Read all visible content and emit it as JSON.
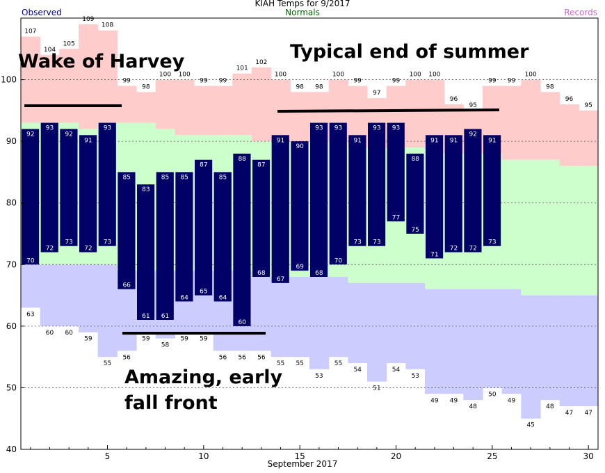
{
  "chart_data": {
    "type": "bar",
    "title": "KIAH Temps for 9/2017",
    "xlabel": "September 2017",
    "ylabel": "",
    "ylim": [
      40,
      110
    ],
    "yticks": [
      40,
      50,
      60,
      70,
      80,
      90,
      100
    ],
    "xticks": [
      5,
      10,
      15,
      20,
      25,
      30
    ],
    "xlim": [
      0.5,
      30.5
    ],
    "grid": "horizontal dashed",
    "legend": {
      "observed": "Observed",
      "normals": "Normals",
      "records": "Records"
    },
    "colors": {
      "observed": "#000066",
      "observed_label": "#000099",
      "normals_band": "#ccffcc",
      "normals_label": "#006600",
      "record_high_band": "#ffcccc",
      "record_low_band": "#ccccff",
      "records_label": "#cc66cc"
    },
    "days": [
      1,
      2,
      3,
      4,
      5,
      6,
      7,
      8,
      9,
      10,
      11,
      12,
      13,
      14,
      15,
      16,
      17,
      18,
      19,
      20,
      21,
      22,
      23,
      24,
      25,
      26,
      27,
      28,
      29,
      30
    ],
    "record_high": [
      107,
      104,
      105,
      109,
      108,
      99,
      98,
      100,
      100,
      99,
      99,
      101,
      102,
      100,
      98,
      98,
      100,
      99,
      97,
      99,
      100,
      100,
      96,
      95,
      99,
      99,
      100,
      98,
      96,
      95
    ],
    "record_low": [
      63,
      60,
      60,
      59,
      55,
      56,
      59,
      58,
      59,
      59,
      56,
      56,
      56,
      55,
      55,
      53,
      55,
      54,
      51,
      54,
      53,
      49,
      49,
      48,
      50,
      49,
      45,
      48,
      47,
      47
    ],
    "normal_high": [
      93,
      93,
      93,
      92,
      93,
      93,
      93,
      92,
      91,
      91,
      91,
      91,
      90,
      90,
      90,
      90,
      90,
      89,
      89,
      89,
      89,
      88,
      88,
      88,
      88,
      87,
      87,
      87,
      86,
      86
    ],
    "normal_low": [
      70,
      70,
      70,
      70,
      70,
      69,
      69,
      69,
      69,
      69,
      69,
      69,
      68,
      68,
      68,
      68,
      68,
      67,
      67,
      67,
      67,
      66,
      66,
      66,
      66,
      66,
      65,
      65,
      65,
      65
    ],
    "observed_high": [
      92,
      93,
      92,
      91,
      93,
      85,
      83,
      85,
      85,
      87,
      85,
      88,
      87,
      91,
      90,
      93,
      93,
      91,
      93,
      93,
      88,
      91,
      91,
      92,
      91
    ],
    "observed_low": [
      70,
      72,
      73,
      72,
      73,
      66,
      61,
      61,
      64,
      65,
      64,
      60,
      68,
      67,
      69,
      68,
      70,
      73,
      73,
      77,
      75,
      71,
      72,
      72,
      73
    ],
    "annotations": {
      "harvey": "Wake of Harvey",
      "summer": "Typical end of summer",
      "fall_line1": "Amazing, early",
      "fall_line2": "fall front"
    }
  }
}
